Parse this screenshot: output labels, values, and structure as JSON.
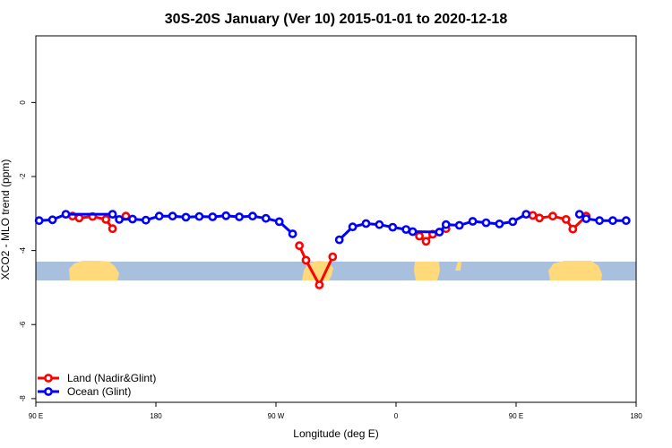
{
  "chart_data": {
    "type": "line",
    "title": "30S-20S January (Ver 10)   2015-01-01 to 2020-12-18",
    "xlabel": "Longitude (deg E)",
    "ylabel": "XCO2 - MLO trend (ppm)",
    "xlim": [
      90,
      540
    ],
    "ylim": [
      -8.1,
      1.8
    ],
    "xticks": [
      {
        "value": 90,
        "label": "90 E"
      },
      {
        "value": 180,
        "label": "180"
      },
      {
        "value": 270,
        "label": "90 W"
      },
      {
        "value": 360,
        "label": "0"
      },
      {
        "value": 450,
        "label": "90 E"
      },
      {
        "value": 540,
        "label": "180"
      }
    ],
    "yticks": [
      {
        "value": 0,
        "label": "0"
      },
      {
        "value": -2,
        "label": "-2"
      },
      {
        "value": -4,
        "label": "-4"
      },
      {
        "value": -6,
        "label": "-6"
      },
      {
        "value": -8,
        "label": "-8"
      }
    ],
    "grid": false,
    "legend": {
      "placement": "bottom-left"
    },
    "series": [
      {
        "name": "Land (Nadir&Glint)",
        "color": "#ff0000",
        "segments": [
          [
            [
              117.5,
              -3.07
            ],
            [
              122.5,
              -3.12
            ],
            [
              132.5,
              -3.08
            ],
            [
              142.5,
              -3.16
            ],
            [
              147.5,
              -3.41
            ]
          ],
          [
            [
              157.5,
              -3.07
            ]
          ],
          [
            [
              287.5,
              -3.87
            ],
            [
              292.5,
              -4.26
            ],
            [
              302.5,
              -4.93
            ],
            [
              312.5,
              -4.17
            ]
          ],
          [
            [
              377.5,
              -3.61
            ],
            [
              382.5,
              -3.75
            ],
            [
              387.5,
              -3.56
            ],
            [
              397.5,
              -3.41
            ]
          ],
          [
            [
              462.5,
              -3.05
            ],
            [
              467.5,
              -3.12
            ],
            [
              477.5,
              -3.07
            ],
            [
              487.5,
              -3.16
            ],
            [
              492.5,
              -3.42
            ],
            [
              502.5,
              -3.07
            ]
          ]
        ]
      },
      {
        "name": "Ocean (Glint)",
        "color": "#0000ff",
        "segments": [
          [
            [
              92.5,
              -3.19
            ],
            [
              102.5,
              -3.17
            ],
            [
              112.5,
              -3.02
            ],
            [
              147.5,
              -3.02
            ],
            [
              152.5,
              -3.16
            ],
            [
              162.5,
              -3.15
            ],
            [
              172.5,
              -3.18
            ],
            [
              182.5,
              -3.07
            ],
            [
              192.5,
              -3.07
            ],
            [
              202.5,
              -3.1
            ],
            [
              212.5,
              -3.08
            ],
            [
              222.5,
              -3.09
            ],
            [
              232.5,
              -3.06
            ],
            [
              242.5,
              -3.09
            ],
            [
              252.5,
              -3.07
            ],
            [
              262.5,
              -3.13
            ],
            [
              272.5,
              -3.22
            ],
            [
              282.5,
              -3.55
            ]
          ],
          [
            [
              317.5,
              -3.71
            ],
            [
              327.5,
              -3.36
            ],
            [
              337.5,
              -3.27
            ],
            [
              347.5,
              -3.3
            ],
            [
              357.5,
              -3.37
            ],
            [
              367.5,
              -3.43
            ],
            [
              372.5,
              -3.49
            ],
            [
              392.5,
              -3.5
            ],
            [
              397.5,
              -3.3
            ],
            [
              407.5,
              -3.32
            ],
            [
              417.5,
              -3.21
            ],
            [
              427.5,
              -3.25
            ],
            [
              437.5,
              -3.28
            ],
            [
              447.5,
              -3.22
            ],
            [
              457.5,
              -3.02
            ]
          ],
          [
            [
              497.5,
              -3.02
            ],
            [
              502.5,
              -3.14
            ],
            [
              512.5,
              -3.19
            ],
            [
              522.5,
              -3.19
            ],
            [
              532.5,
              -3.19
            ]
          ]
        ]
      }
    ],
    "land_strip": {
      "y_range": [
        -4.85,
        -4.3
      ],
      "ocean_color": "#a9bfde",
      "land_color": "#ffd97a"
    }
  }
}
